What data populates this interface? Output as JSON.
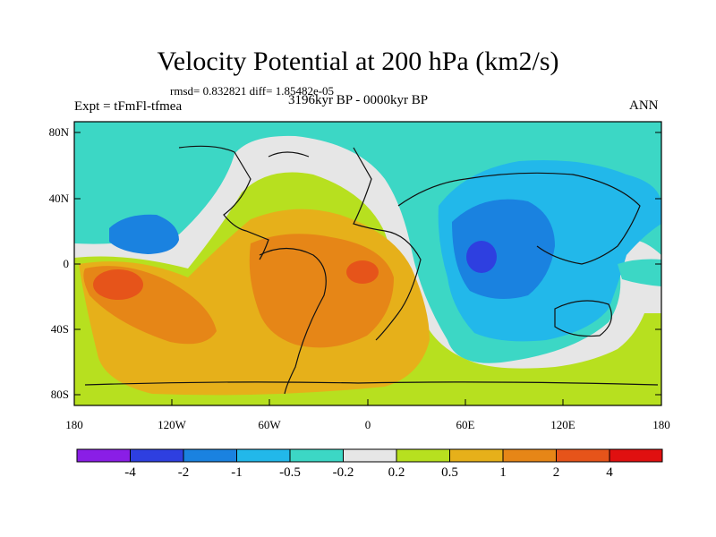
{
  "title": "Velocity Potential at 200 hPa (km2/s)",
  "stats": "rmsd= 0.832821 diff= 1.85482e-05",
  "left_label": "Expt = tFmFl-tfmea",
  "center_label": "3196kyr BP - 0000kyr BP",
  "right_label": "ANN",
  "lat_ticks": [
    "80N",
    "40N",
    "0",
    "40S",
    "80S"
  ],
  "lon_ticks": [
    "180",
    "120W",
    "60W",
    "0",
    "60E",
    "120E",
    "180"
  ],
  "colorbar": {
    "colors": [
      "#8a1ee6",
      "#2e3fe0",
      "#1a82e0",
      "#22b8ea",
      "#3cd7c5",
      "#e6e6e6",
      "#b7e01f",
      "#e6b01a",
      "#e68617",
      "#e6541a",
      "#e01010"
    ],
    "labels": [
      "-4",
      "-2",
      "-1",
      "-0.5",
      "-0.2",
      "0.2",
      "0.5",
      "1",
      "2",
      "4"
    ]
  },
  "colors": {
    "neg_05_02": "#3cd7c5",
    "neg_1_05": "#22b8ea",
    "neg_2_1": "#1a82e0",
    "neg_4_2": "#2e3fe0",
    "near_zero": "#e6e6e6",
    "pos_02_05": "#b7e01f",
    "pos_05_1": "#e6b01a",
    "pos_1_2": "#e68617",
    "pos_2_4": "#e6541a"
  }
}
